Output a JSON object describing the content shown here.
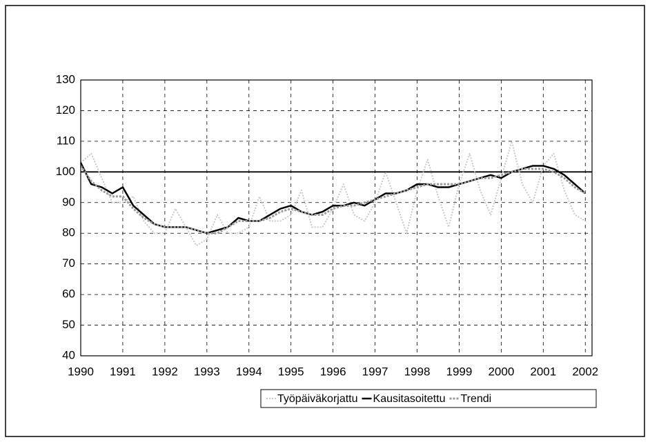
{
  "chart_data": {
    "type": "line",
    "x": [
      1990,
      1990.25,
      1990.5,
      1990.75,
      1991,
      1991.25,
      1991.5,
      1991.75,
      1992,
      1992.25,
      1992.5,
      1992.75,
      1993,
      1993.25,
      1993.5,
      1993.75,
      1994,
      1994.25,
      1994.5,
      1994.75,
      1995,
      1995.25,
      1995.5,
      1995.75,
      1996,
      1996.25,
      1996.5,
      1996.75,
      1997,
      1997.25,
      1997.5,
      1997.75,
      1998,
      1998.25,
      1998.5,
      1998.75,
      1999,
      1999.25,
      1999.5,
      1999.75,
      2000,
      2000.25,
      2000.5,
      2000.75,
      2001,
      2001.25,
      2001.5,
      2001.75,
      2002
    ],
    "series": [
      {
        "name": "Työpäiväkorjattu",
        "color": "#c8c8c8",
        "values": [
          103,
          106,
          98,
          90,
          90,
          92,
          84,
          80,
          80,
          88,
          82,
          76,
          78,
          86,
          80,
          80,
          82,
          92,
          84,
          84,
          86,
          94,
          82,
          82,
          88,
          96,
          86,
          84,
          90,
          100,
          90,
          80,
          94,
          104,
          92,
          82,
          96,
          106,
          94,
          86,
          98,
          110,
          96,
          90,
          102,
          106,
          94,
          86,
          84
        ]
      },
      {
        "name": "Kausitasoitettu",
        "color": "#000000",
        "values": [
          103,
          96,
          95,
          93,
          95,
          89,
          86,
          83,
          82,
          82,
          82,
          81,
          80,
          81,
          82,
          85,
          84,
          84,
          86,
          88,
          89,
          87,
          86,
          87,
          89,
          89,
          90,
          89,
          91,
          93,
          93,
          94,
          96,
          96,
          95,
          95,
          96,
          97,
          98,
          99,
          98,
          100,
          101,
          102,
          102,
          101,
          99,
          96,
          93
        ]
      },
      {
        "name": "Trendi",
        "color": "#9a9a9a",
        "values": [
          102,
          97,
          94,
          92,
          92,
          88,
          85,
          83,
          82,
          82,
          82,
          81,
          80,
          80,
          82,
          84,
          84,
          84,
          85,
          87,
          88,
          87,
          86,
          86,
          88,
          89,
          89,
          90,
          91,
          92,
          93,
          94,
          95,
          96,
          96,
          96,
          96,
          97,
          98,
          98,
          99,
          100,
          101,
          101,
          101,
          100,
          98,
          95,
          93
        ]
      }
    ],
    "reference_line": 100,
    "xlim": [
      1990,
      2002.16
    ],
    "xticks": [
      1990,
      1991,
      1992,
      1993,
      1994,
      1995,
      1996,
      1997,
      1998,
      1999,
      2000,
      2001,
      2002
    ],
    "ylim": [
      40,
      130
    ],
    "yticks": [
      40,
      50,
      60,
      70,
      80,
      90,
      100,
      110,
      120,
      130
    ],
    "grid": true,
    "legend": "bottom-right"
  }
}
